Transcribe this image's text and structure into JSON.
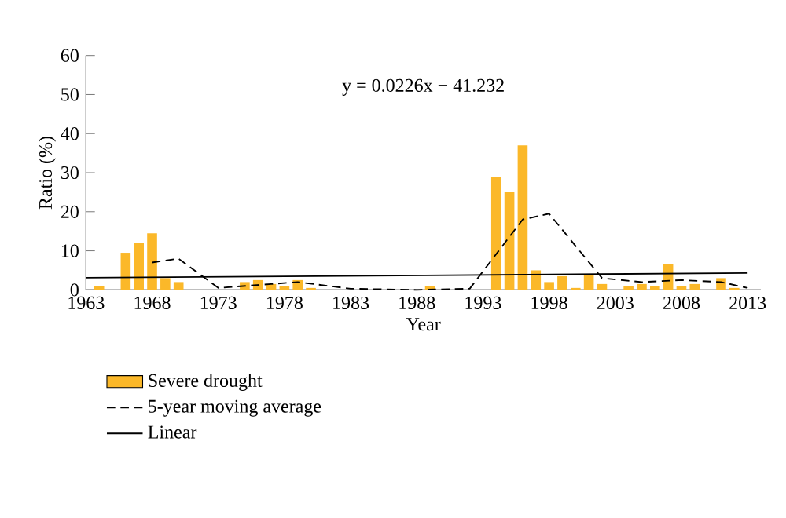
{
  "chart_data": {
    "type": "bar",
    "ylabel": "Ratio (%)",
    "xlabel": "Year",
    "annotations": [
      "y = 0.0226x − 41.232"
    ],
    "xlim": [
      1963,
      2014
    ],
    "xticks": [
      1963,
      1968,
      1973,
      1978,
      1983,
      1988,
      1993,
      1998,
      2003,
      2008,
      2013
    ],
    "ylim": [
      0,
      60
    ],
    "yticks": [
      0,
      10,
      20,
      30,
      40,
      50,
      60
    ],
    "legend": "bottom",
    "series": [
      {
        "name": "Severe drought",
        "color": "#fbb829",
        "x": [
          1964,
          1966,
          1967,
          1968,
          1969,
          1970,
          1975,
          1976,
          1977,
          1978,
          1979,
          1980,
          1989,
          1994,
          1995,
          1996,
          1997,
          1998,
          1999,
          2000,
          2001,
          2002,
          2004,
          2005,
          2006,
          2007,
          2008,
          2009,
          2011,
          2012
        ],
        "values": [
          1,
          9.5,
          12,
          14.5,
          3,
          2,
          2,
          2.5,
          1.5,
          1,
          2.5,
          0.5,
          1,
          29,
          25,
          37,
          5,
          2,
          3.5,
          0.5,
          4,
          1.5,
          1,
          1.5,
          1,
          6.5,
          1,
          1.5,
          3,
          0.5
        ]
      },
      {
        "name": "5-year moving average",
        "type": "line",
        "line_style": "dashed",
        "color": "#000000",
        "x": [
          1968,
          1970,
          1973,
          1975,
          1977,
          1979,
          1983,
          1988,
          1992,
          1996,
          1998,
          2002,
          2005,
          2008,
          2011,
          2013
        ],
        "values": [
          7,
          8,
          0.5,
          1,
          1.5,
          2,
          0.3,
          0,
          0.3,
          18,
          19.5,
          3,
          2,
          2.5,
          2,
          0.5
        ]
      },
      {
        "name": "Linear",
        "type": "line",
        "line_style": "solid",
        "color": "#000000",
        "x": [
          1963,
          2013
        ],
        "values": [
          3.1,
          4.3
        ]
      }
    ]
  }
}
